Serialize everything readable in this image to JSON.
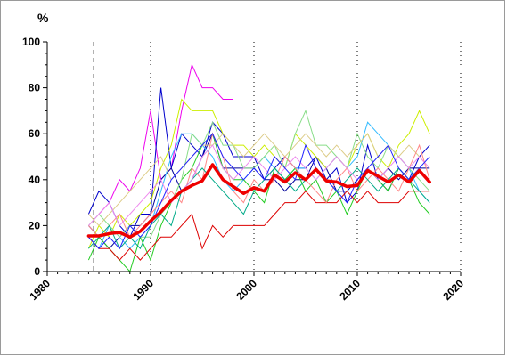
{
  "chart_data": {
    "type": "line",
    "title": "",
    "xlabel": "",
    "ylabel": "%",
    "xlim": [
      1980,
      2020
    ],
    "ylim": [
      0,
      100
    ],
    "x_ticks": [
      1980,
      1990,
      2000,
      2010,
      2020
    ],
    "y_ticks": [
      0,
      20,
      40,
      60,
      80,
      100
    ],
    "x_tick_labels": [
      "1980",
      "1990",
      "2000",
      "2010",
      "2020"
    ],
    "y_tick_labels": [
      "0",
      "20",
      "40",
      "60",
      "80",
      "100"
    ],
    "vertical_reference_lines": [
      {
        "x": 1984.5,
        "style": "dashed"
      },
      {
        "x": 1990,
        "style": "dotted"
      },
      {
        "x": 2000,
        "style": "dotted"
      },
      {
        "x": 2010,
        "style": "dotted"
      },
      {
        "x": 2020,
        "style": "dotted"
      }
    ],
    "grid": false,
    "legend": "none",
    "background_series": [
      {
        "color": "#ee00ee",
        "x": [
          1985,
          1986,
          1987,
          1988,
          1989,
          1990,
          1991,
          1992,
          1993,
          1994,
          1995,
          1996,
          1997,
          1998
        ],
        "values": [
          25,
          30,
          40,
          35,
          45,
          70,
          40,
          45,
          70,
          90,
          80,
          80,
          75,
          75
        ]
      },
      {
        "color": "#0000cc",
        "x": [
          1984,
          1985,
          1986,
          1987,
          1988,
          1989,
          1990,
          1991,
          1992,
          1993,
          1994,
          1995,
          1996,
          1997,
          1998,
          1999,
          2000,
          2001,
          2002,
          2003,
          2004,
          2005,
          2006,
          2007,
          2008,
          2009,
          2010,
          2011,
          2012,
          2013,
          2014,
          2015,
          2016,
          2017
        ],
        "values": [
          25,
          35,
          30,
          20,
          15,
          25,
          25,
          80,
          45,
          60,
          55,
          50,
          65,
          60,
          50,
          50,
          50,
          40,
          45,
          50,
          45,
          45,
          50,
          40,
          45,
          30,
          35,
          55,
          40,
          35,
          45,
          40,
          50,
          55
        ]
      },
      {
        "color": "#000099",
        "x": [
          1984,
          1985,
          1986,
          1987,
          1988,
          1989,
          1990,
          1991,
          1992,
          1993,
          1994,
          1995,
          1996,
          1997,
          1998,
          1999,
          2000,
          2001,
          2002,
          2003,
          2004,
          2005,
          2006,
          2007,
          2008,
          2009,
          2010,
          2011,
          2012,
          2013,
          2014,
          2015,
          2016,
          2017
        ],
        "values": [
          20,
          15,
          10,
          15,
          20,
          20,
          25,
          40,
          45,
          35,
          40,
          50,
          60,
          45,
          45,
          45,
          45,
          40,
          40,
          35,
          40,
          40,
          50,
          45,
          35,
          35,
          40,
          45,
          40,
          45,
          40,
          45,
          45,
          45
        ]
      },
      {
        "color": "#ccee00",
        "x": [
          1984,
          1985,
          1986,
          1987,
          1988,
          1989,
          1990,
          1991,
          1992,
          1993,
          1994,
          1995,
          1996,
          1997,
          1998,
          1999,
          2000,
          2001,
          2002,
          2003,
          2004,
          2005,
          2006,
          2007,
          2008,
          2009,
          2010,
          2011,
          2012,
          2013,
          2014,
          2015,
          2016,
          2017
        ],
        "values": [
          10,
          20,
          15,
          25,
          20,
          25,
          30,
          45,
          55,
          75,
          70,
          70,
          70,
          60,
          55,
          55,
          50,
          55,
          50,
          45,
          60,
          55,
          50,
          45,
          50,
          45,
          55,
          60,
          50,
          45,
          55,
          60,
          70,
          60
        ]
      },
      {
        "color": "#33bbff",
        "x": [
          1984,
          1985,
          1986,
          1987,
          1988,
          1989,
          1990,
          1991,
          1992,
          1993,
          1994,
          1995,
          1996,
          1997,
          1998,
          1999,
          2000,
          2001,
          2002,
          2003,
          2004,
          2005,
          2006,
          2007,
          2008,
          2009,
          2010,
          2011,
          2012,
          2013,
          2014,
          2015,
          2016,
          2017
        ],
        "values": [
          15,
          10,
          20,
          15,
          10,
          15,
          20,
          35,
          50,
          60,
          60,
          55,
          50,
          40,
          35,
          40,
          45,
          50,
          45,
          40,
          45,
          45,
          40,
          45,
          50,
          45,
          50,
          65,
          60,
          55,
          50,
          45,
          35,
          30
        ]
      },
      {
        "color": "#22cc22",
        "x": [
          1984,
          1985,
          1986,
          1987,
          1988,
          1989,
          1990,
          1991,
          1992,
          1993,
          1994,
          1995,
          1996,
          1997,
          1998,
          1999,
          2000,
          2001,
          2002,
          2003,
          2004,
          2005,
          2006,
          2007,
          2008,
          2009,
          2010,
          2011,
          2012,
          2013,
          2014,
          2015,
          2016,
          2017
        ],
        "values": [
          5,
          15,
          10,
          5,
          0,
          15,
          5,
          20,
          30,
          40,
          45,
          55,
          60,
          45,
          40,
          40,
          35,
          30,
          45,
          40,
          45,
          35,
          40,
          30,
          35,
          25,
          35,
          45,
          40,
          35,
          45,
          40,
          30,
          25
        ]
      },
      {
        "color": "#dd0000",
        "x": [
          1984,
          1985,
          1986,
          1987,
          1988,
          1989,
          1990,
          1991,
          1992,
          1993,
          1994,
          1995,
          1996,
          1997,
          1998,
          1999,
          2000,
          2001,
          2002,
          2003,
          2004,
          2005,
          2006,
          2007,
          2008,
          2009,
          2010,
          2011,
          2012,
          2013,
          2014,
          2015,
          2016,
          2017
        ],
        "values": [
          15,
          10,
          10,
          5,
          10,
          5,
          10,
          15,
          15,
          20,
          25,
          10,
          20,
          15,
          20,
          20,
          20,
          20,
          25,
          30,
          30,
          35,
          30,
          30,
          30,
          35,
          30,
          35,
          30,
          30,
          30,
          35,
          35,
          35
        ]
      },
      {
        "color": "#88dd88",
        "x": [
          1984,
          1985,
          1986,
          1987,
          1988,
          1989,
          1990,
          1991,
          1992,
          1993,
          1994,
          1995,
          1996,
          1997,
          1998,
          1999,
          2000,
          2001,
          2002,
          2003,
          2004,
          2005,
          2006,
          2007,
          2008,
          2009,
          2010,
          2011,
          2012,
          2013,
          2014,
          2015,
          2016,
          2017
        ],
        "values": [
          20,
          25,
          20,
          15,
          20,
          15,
          15,
          25,
          30,
          40,
          60,
          55,
          65,
          55,
          55,
          45,
          45,
          50,
          55,
          45,
          60,
          70,
          55,
          55,
          50,
          45,
          60,
          50,
          45,
          55,
          50,
          45,
          40,
          35
        ]
      },
      {
        "color": "#ddcc88",
        "x": [
          1984,
          1985,
          1986,
          1987,
          1988,
          1989,
          1990,
          1991,
          1992,
          1993,
          1994,
          1995,
          1996,
          1997,
          1998,
          1999,
          2000,
          2001,
          2002,
          2003,
          2004,
          2005,
          2006,
          2007,
          2008,
          2009,
          2010,
          2011,
          2012,
          2013,
          2014,
          2015,
          2016,
          2017
        ],
        "values": [
          25,
          20,
          25,
          30,
          35,
          40,
          45,
          50,
          40,
          45,
          50,
          55,
          55,
          60,
          55,
          50,
          55,
          60,
          55,
          50,
          55,
          60,
          55,
          50,
          55,
          50,
          55,
          60,
          50,
          55,
          50,
          55,
          50,
          45
        ]
      },
      {
        "color": "#ff8888",
        "x": [
          1984,
          1985,
          1986,
          1987,
          1988,
          1989,
          1990,
          1991,
          1992,
          1993,
          1994,
          1995,
          1996,
          1997,
          1998,
          1999,
          2000,
          2001,
          2002,
          2003,
          2004,
          2005,
          2006,
          2007,
          2008,
          2009,
          2010,
          2011,
          2012,
          2013,
          2014,
          2015,
          2016,
          2017
        ],
        "values": [
          20,
          15,
          20,
          25,
          15,
          20,
          25,
          30,
          35,
          30,
          45,
          40,
          60,
          50,
          35,
          30,
          40,
          35,
          40,
          50,
          45,
          40,
          35,
          30,
          40,
          45,
          35,
          40,
          45,
          40,
          35,
          45,
          55,
          40
        ]
      },
      {
        "color": "#00aa88",
        "x": [
          1984,
          1985,
          1986,
          1987,
          1988,
          1989,
          1990,
          1991,
          1992,
          1993,
          1994,
          1995,
          1996,
          1997,
          1998,
          1999,
          2000,
          2001,
          2002,
          2003,
          2004,
          2005,
          2006,
          2007,
          2008,
          2009,
          2010,
          2011,
          2012,
          2013,
          2014,
          2015,
          2016,
          2017
        ],
        "values": [
          10,
          15,
          20,
          10,
          15,
          10,
          20,
          25,
          20,
          35,
          40,
          45,
          40,
          35,
          30,
          25,
          35,
          40,
          45,
          40,
          35,
          40,
          45,
          40,
          35,
          40,
          45,
          40,
          35,
          40,
          45,
          40,
          35,
          30
        ]
      },
      {
        "color": "#ee88ee",
        "x": [
          1984,
          1985,
          1986,
          1987,
          1988,
          1989,
          1990,
          1991,
          1992,
          1993,
          1994,
          1995,
          1996,
          1997,
          1998,
          1999,
          2000,
          2001,
          2002,
          2003,
          2004,
          2005,
          2006,
          2007,
          2008,
          2009,
          2010,
          2011,
          2012,
          2013,
          2014,
          2015,
          2016,
          2017
        ],
        "values": [
          20,
          25,
          30,
          20,
          25,
          30,
          35,
          40,
          30,
          35,
          40,
          50,
          55,
          45,
          40,
          45,
          50,
          45,
          40,
          45,
          50,
          45,
          40,
          45,
          50,
          45,
          40,
          45,
          40,
          45,
          50,
          45,
          50,
          45
        ]
      },
      {
        "color": "#2222ff",
        "x": [
          1984,
          1985,
          1986,
          1987,
          1988,
          1989,
          1990,
          1991,
          1992,
          1993,
          1994,
          1995,
          1996,
          1997,
          1998,
          1999,
          2000,
          2001,
          2002,
          2003,
          2004,
          2005,
          2006,
          2007,
          2008,
          2009,
          2010,
          2011,
          2012,
          2013,
          2014,
          2015,
          2016,
          2017
        ],
        "values": [
          15,
          10,
          15,
          10,
          20,
          15,
          20,
          30,
          40,
          45,
          50,
          55,
          60,
          50,
          45,
          40,
          45,
          40,
          50,
          45,
          40,
          55,
          45,
          40,
          35,
          30,
          40,
          45,
          50,
          55,
          45,
          40,
          45,
          50
        ]
      }
    ],
    "series": [
      {
        "color": "#ee0000",
        "x": [
          1984,
          1985,
          1986,
          1987,
          1988,
          1989,
          1990,
          1991,
          1992,
          1993,
          1994,
          1995,
          1996,
          1997,
          1998,
          1999,
          2000,
          2001,
          2002,
          2003,
          2004,
          2005,
          2006,
          2007,
          2008,
          2009,
          2010,
          2011,
          2012,
          2013,
          2014,
          2015,
          2016,
          2017
        ],
        "values": [
          15.5,
          15.5,
          16.5,
          17,
          15,
          17.5,
          22,
          26,
          31,
          35,
          37.5,
          39.5,
          46.5,
          40,
          37,
          34,
          36.5,
          35,
          42,
          39,
          43,
          40,
          44.5,
          39.5,
          39,
          37,
          37.5,
          44,
          41.5,
          39,
          42,
          39,
          44,
          39
        ]
      }
    ]
  }
}
